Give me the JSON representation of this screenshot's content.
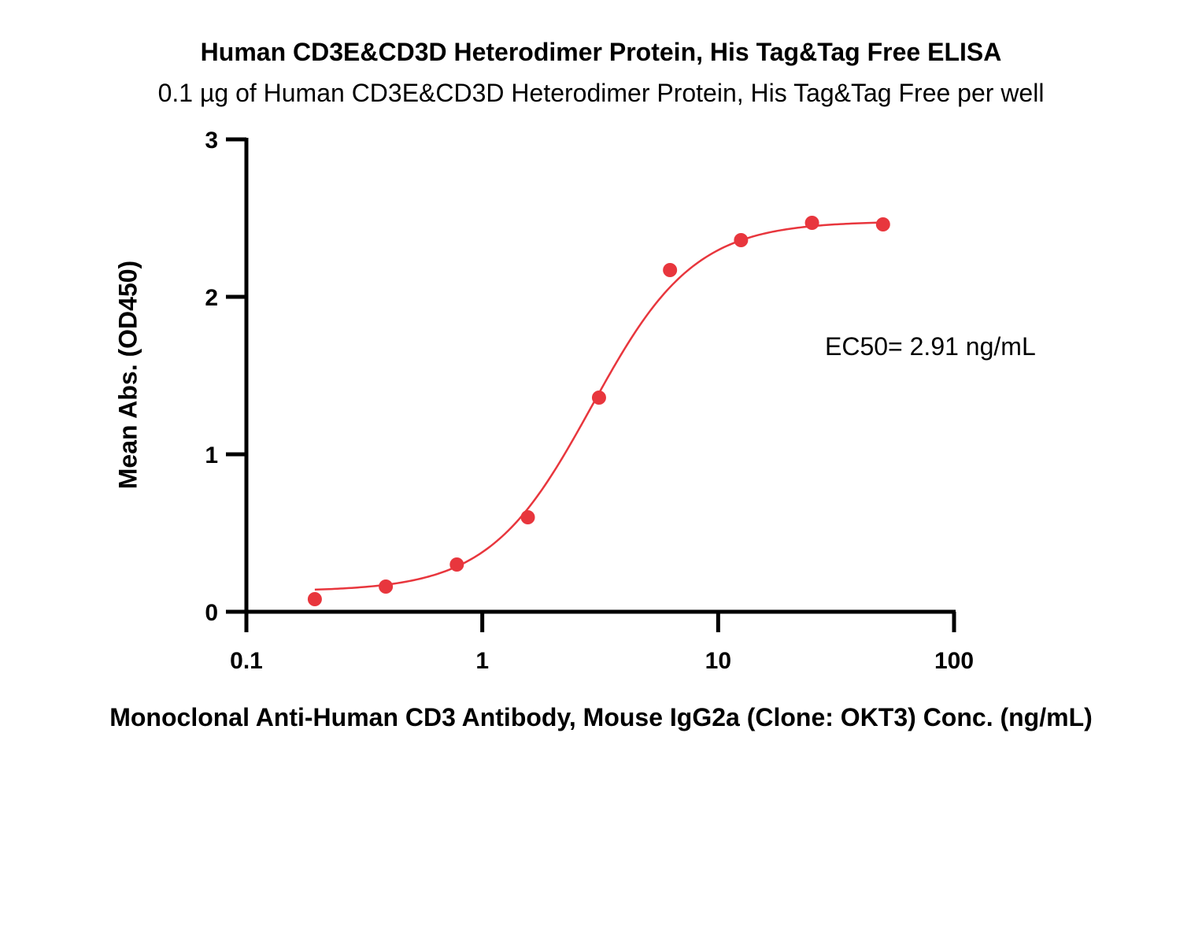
{
  "chart_data": {
    "type": "scatter",
    "title": "Human CD3E&CD3D Heterodimer Protein, His Tag&Tag Free ELISA",
    "subtitle": "0.1 µg of Human CD3E&CD3D Heterodimer Protein, His Tag&Tag Free per well",
    "xlabel": "Monoclonal Anti-Human CD3 Antibody, Mouse IgG2a (Clone: OKT3) Conc. (ng/mL)",
    "ylabel": "Mean Abs. (OD450)",
    "x_scale": "log",
    "xlim": [
      0.1,
      100
    ],
    "ylim": [
      0,
      3
    ],
    "x_ticks": [
      0.1,
      1,
      10,
      100
    ],
    "x_tick_labels": [
      "0.1",
      "1",
      "10",
      "100"
    ],
    "y_ticks": [
      0,
      1,
      2,
      3
    ],
    "y_tick_labels": [
      "0",
      "1",
      "2",
      "3"
    ],
    "grid": false,
    "series": [
      {
        "color": "#e8363d",
        "x": [
          0.195,
          0.39,
          0.78,
          1.56,
          3.125,
          6.25,
          12.5,
          25,
          50
        ],
        "y": [
          0.08,
          0.16,
          0.3,
          0.6,
          1.36,
          2.17,
          2.36,
          2.47,
          2.46
        ]
      }
    ],
    "fit_curve": {
      "model": "4PL",
      "bottom": 0.13,
      "top": 2.48,
      "ec50": 2.91,
      "hill_slope": 2.0,
      "x_range": [
        0.195,
        50
      ]
    },
    "annotation": "EC50= 2.91 ng/mL"
  }
}
